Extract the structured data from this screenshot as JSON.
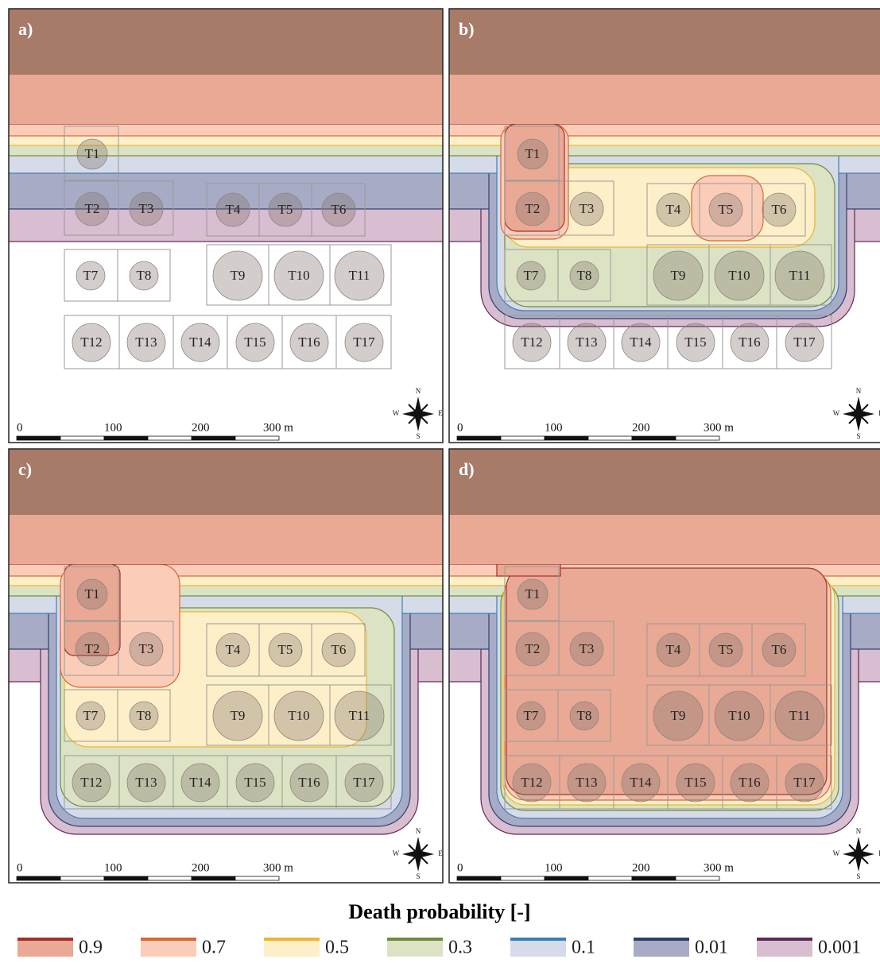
{
  "panels": [
    {
      "label": "a)"
    },
    {
      "label": "b)"
    },
    {
      "label": "c)"
    },
    {
      "label": "d)"
    }
  ],
  "tanks": [
    "T1",
    "T2",
    "T3",
    "T4",
    "T5",
    "T6",
    "T7",
    "T8",
    "T9",
    "T10",
    "T11",
    "T12",
    "T13",
    "T14",
    "T15",
    "T16",
    "T17"
  ],
  "scale_bar": {
    "labels": [
      "0",
      "100",
      "200",
      "300 m"
    ]
  },
  "compass": {
    "n": "N",
    "w": "W",
    "e": "E",
    "s": "S"
  },
  "legend": {
    "title": "Death probability [-]",
    "entries": [
      {
        "label": "0.9",
        "color": "#e9a995",
        "line": "#a3302b"
      },
      {
        "label": "0.7",
        "color": "#fbcdb8",
        "line": "#d8663a"
      },
      {
        "label": "0.5",
        "color": "#fdf0c8",
        "line": "#eab632"
      },
      {
        "label": "0.3",
        "color": "#dce3c4",
        "line": "#6f8b3c"
      },
      {
        "label": "0.1",
        "color": "#d6dbe9",
        "line": "#3e7fb3"
      },
      {
        "label": "0.01",
        "color": "#a8abc6",
        "line": "#2e3f6c"
      },
      {
        "label": "0.001",
        "color": "#d9bdd0",
        "line": "#5b2a58"
      }
    ]
  }
}
